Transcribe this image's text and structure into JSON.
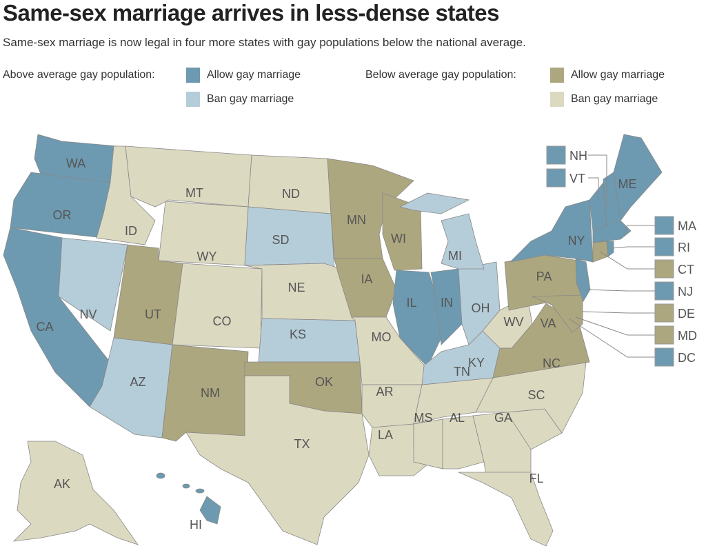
{
  "title": "Same-sex marriage arrives in less-dense states",
  "subtitle": "Same-sex marriage is now legal in four more states with gay populations below the national average.",
  "legend": {
    "above_label": "Above average gay population:",
    "below_label": "Below average gay population:",
    "allow": "Allow gay marriage",
    "ban": "Ban gay marriage"
  },
  "colors": {
    "above_allow": "#6d9ab0",
    "above_ban": "#b5cdd9",
    "below_allow": "#ada77f",
    "below_ban": "#dcd9c1"
  },
  "states": {
    "WA": "above_allow",
    "OR": "above_allow",
    "CA": "above_allow",
    "ID": "below_ban",
    "NV": "above_ban",
    "MT": "below_ban",
    "WY": "below_ban",
    "UT": "below_allow",
    "AZ": "above_ban",
    "CO": "below_ban",
    "NM": "below_allow",
    "ND": "below_ban",
    "SD": "above_ban",
    "NE": "below_ban",
    "KS": "above_ban",
    "OK": "below_allow",
    "TX": "below_ban",
    "MN": "below_allow",
    "IA": "below_allow",
    "WI": "below_allow",
    "IL": "above_allow",
    "MO": "below_ban",
    "AR": "below_ban",
    "LA": "below_ban",
    "MS": "below_ban",
    "AL": "below_ban",
    "GA": "below_ban",
    "FL": "below_ban",
    "SC": "below_ban",
    "NC": "below_ban",
    "TN": "below_ban",
    "KY": "above_ban",
    "IN": "above_allow",
    "OH": "above_ban",
    "MI": "above_ban",
    "WV": "below_ban",
    "VA": "below_allow",
    "PA": "below_allow",
    "MD": "below_allow",
    "NJ": "above_allow",
    "NY": "above_allow",
    "VT": "above_allow",
    "NH": "above_allow",
    "ME": "above_allow",
    "MA": "above_allow",
    "CT": "below_allow",
    "RI": "above_allow",
    "DE": "below_allow",
    "DC": "above_allow",
    "AK": "below_ban",
    "HI": "above_allow"
  },
  "callouts": [
    "NH",
    "VT",
    "MA",
    "RI",
    "CT",
    "NJ",
    "DE",
    "MD",
    "DC"
  ]
}
